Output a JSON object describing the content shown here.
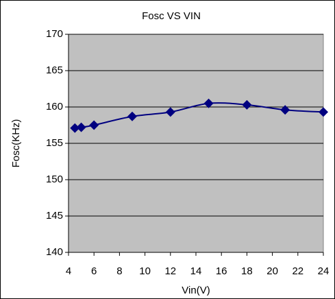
{
  "chart_data": {
    "type": "line",
    "title": "Fosc VS VIN",
    "x_label": "Vin(V)",
    "y_label": "Fosc(KHz)",
    "series": [
      {
        "name": "Fosc",
        "color": "#000080",
        "x": [
          4.5,
          5,
          6,
          9,
          12,
          15,
          18,
          21,
          24
        ],
        "values": [
          157.1,
          157.2,
          157.5,
          158.7,
          159.3,
          160.5,
          160.3,
          159.6,
          159.3
        ]
      }
    ],
    "xlim": [
      4,
      24
    ],
    "xticks": [
      4,
      6,
      8,
      10,
      12,
      14,
      16,
      18,
      20,
      22,
      24
    ],
    "ylim": [
      140,
      170
    ],
    "yticks": [
      140,
      145,
      150,
      155,
      160,
      165,
      170
    ],
    "grid": true,
    "plot_background": "#c0c0c0"
  }
}
